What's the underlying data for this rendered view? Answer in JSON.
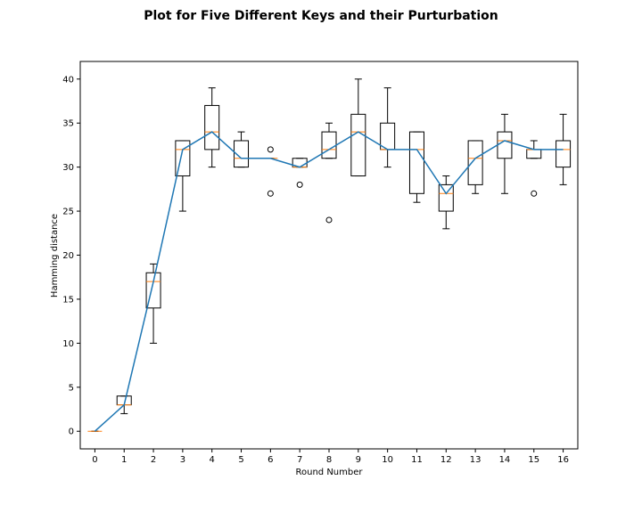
{
  "chart_data": {
    "type": "box",
    "title": "Plot for Five Different Keys and their Purturbation",
    "xlabel": "Round Number",
    "ylabel": "Hamming distance",
    "x_ticks": [
      "0",
      "1",
      "2",
      "3",
      "4",
      "5",
      "6",
      "7",
      "8",
      "9",
      "10",
      "11",
      "12",
      "13",
      "14",
      "15",
      "16"
    ],
    "y_ticks": [
      "0",
      "5",
      "10",
      "15",
      "20",
      "25",
      "30",
      "35",
      "40"
    ],
    "xlim": [
      -0.5,
      16.5
    ],
    "ylim": [
      -2,
      42
    ],
    "grid": false,
    "colors": {
      "median": "#ff7f0e",
      "line": "#1f77b4",
      "box": "#000000"
    },
    "boxes": [
      {
        "x": 0,
        "whislo": 0,
        "q1": 0,
        "med": 0,
        "q3": 0,
        "whishi": 0,
        "fliers": []
      },
      {
        "x": 1,
        "whislo": 2,
        "q1": 3,
        "med": 3,
        "q3": 4,
        "whishi": 4,
        "fliers": []
      },
      {
        "x": 2,
        "whislo": 10,
        "q1": 14,
        "med": 17,
        "q3": 18,
        "whishi": 19,
        "fliers": []
      },
      {
        "x": 3,
        "whislo": 25,
        "q1": 29,
        "med": 32,
        "q3": 33,
        "whishi": 33,
        "fliers": []
      },
      {
        "x": 4,
        "whislo": 30,
        "q1": 32,
        "med": 34,
        "q3": 37,
        "whishi": 39,
        "fliers": []
      },
      {
        "x": 5,
        "whislo": 30,
        "q1": 30,
        "med": 31,
        "q3": 33,
        "whishi": 34,
        "fliers": []
      },
      {
        "x": 6,
        "whislo": 31,
        "q1": 31,
        "med": 31,
        "q3": 31,
        "whishi": 31,
        "fliers": [
          27,
          32
        ]
      },
      {
        "x": 7,
        "whislo": 30,
        "q1": 30,
        "med": 30,
        "q3": 31,
        "whishi": 31,
        "fliers": [
          28
        ]
      },
      {
        "x": 8,
        "whislo": 31,
        "q1": 31,
        "med": 32,
        "q3": 34,
        "whishi": 35,
        "fliers": [
          24
        ]
      },
      {
        "x": 9,
        "whislo": 29,
        "q1": 29,
        "med": 34,
        "q3": 36,
        "whishi": 40,
        "fliers": []
      },
      {
        "x": 10,
        "whislo": 30,
        "q1": 32,
        "med": 32,
        "q3": 35,
        "whishi": 39,
        "fliers": []
      },
      {
        "x": 11,
        "whislo": 26,
        "q1": 27,
        "med": 32,
        "q3": 34,
        "whishi": 34,
        "fliers": []
      },
      {
        "x": 12,
        "whislo": 23,
        "q1": 25,
        "med": 27,
        "q3": 28,
        "whishi": 29,
        "fliers": []
      },
      {
        "x": 13,
        "whislo": 27,
        "q1": 28,
        "med": 31,
        "q3": 33,
        "whishi": 33,
        "fliers": []
      },
      {
        "x": 14,
        "whislo": 27,
        "q1": 31,
        "med": 33,
        "q3": 34,
        "whishi": 36,
        "fliers": []
      },
      {
        "x": 15,
        "whislo": 31,
        "q1": 31,
        "med": 32,
        "q3": 32,
        "whishi": 33,
        "fliers": [
          27
        ]
      },
      {
        "x": 16,
        "whislo": 28,
        "q1": 30,
        "med": 32,
        "q3": 33,
        "whishi": 36,
        "fliers": []
      }
    ],
    "line": {
      "x": [
        0,
        1,
        2,
        3,
        4,
        5,
        6,
        7,
        8,
        9,
        10,
        11,
        12,
        13,
        14,
        15,
        16
      ],
      "y": [
        0,
        3,
        17,
        32,
        34,
        31,
        31,
        30,
        32,
        34,
        32,
        32,
        27,
        31,
        33,
        32,
        32
      ]
    }
  }
}
